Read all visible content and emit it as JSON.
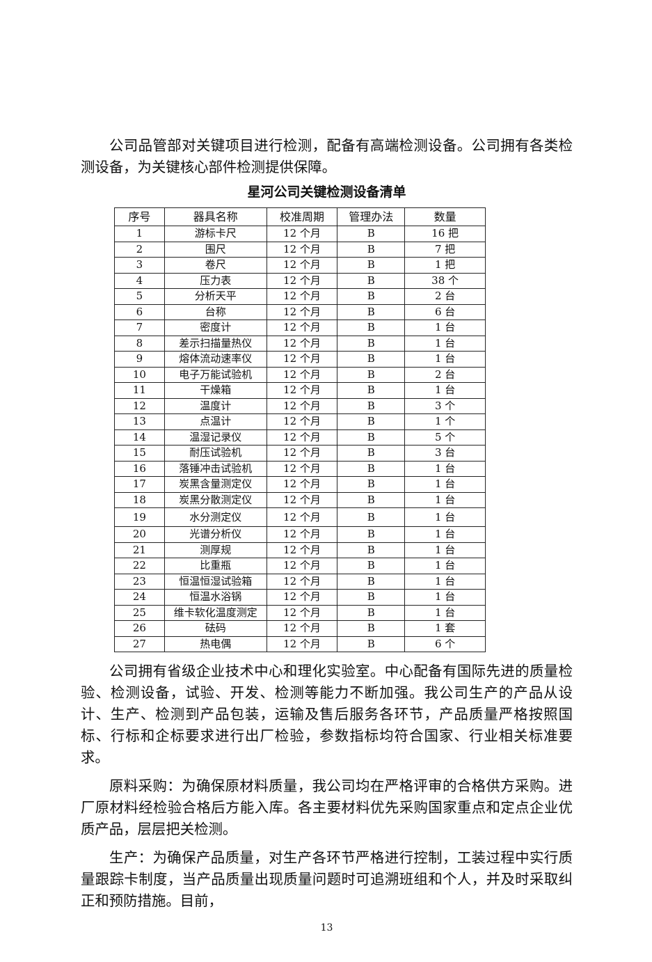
{
  "paragraphs": {
    "intro": "公司品管部对关键项目进行检测，配备有高端检测设备。公司拥有各类检测设备，为关键核心部件检测提供保障。",
    "center": "公司拥有省级企业技术中心和理化实验室。中心配备有国际先进的质量检验、检测设备，试验、开发、检测等能力不断加强。我公司生产的产品从设计、生产、检测到产品包装，运输及售后服务各环节，产品质量严格按照国标、行标和企标要求进行出厂检验，参数指标均符合国家、行业相关标准要求。",
    "procurement": "原料采购：为确保原材料质量，我公司均在严格评审的合格供方采购。进厂原材料经检验合格后方能入库。各主要材料优先采购国家重点和定点企业优质产品，层层把关检测。",
    "production": "生产：为确保产品质量，对生产各环节严格进行控制，工装过程中实行质量跟踪卡制度，当产品质量出现质量问题时可追溯班组和个人，并及时采取纠正和预防措施。目前，"
  },
  "table": {
    "title": "星河公司关键检测设备清单",
    "headers": [
      "序号",
      "器具名称",
      "校准周期",
      "管理办法",
      "数量"
    ],
    "rows": [
      [
        "1",
        "游标卡尺",
        "12 个月",
        "B",
        "16 把"
      ],
      [
        "2",
        "围尺",
        "12 个月",
        "B",
        "7 把"
      ],
      [
        "3",
        "卷尺",
        "12 个月",
        "B",
        "1 把"
      ],
      [
        "4",
        "压力表",
        "12 个月",
        "B",
        "38 个"
      ],
      [
        "5",
        "分析天平",
        "12 个月",
        "B",
        "2 台"
      ],
      [
        "6",
        "台称",
        "12 个月",
        "B",
        "6 台"
      ],
      [
        "7",
        "密度计",
        "12 个月",
        "B",
        "1 台"
      ],
      [
        "8",
        "差示扫描量热仪",
        "12 个月",
        "B",
        "1 台"
      ],
      [
        "9",
        "熔体流动速率仪",
        "12 个月",
        "B",
        "1 台"
      ],
      [
        "10",
        "电子万能试验机",
        "12 个月",
        "B",
        "2 台"
      ],
      [
        "11",
        "干燥箱",
        "12 个月",
        "B",
        "1 台"
      ],
      [
        "12",
        "温度计",
        "12 个月",
        "B",
        "3 个"
      ],
      [
        "13",
        "点温计",
        "12 个月",
        "B",
        "1 个"
      ],
      [
        "14",
        "温湿记录仪",
        "12 个月",
        "B",
        "5 个"
      ],
      [
        "15",
        "耐压试验机",
        "12 个月",
        "B",
        "3 台"
      ],
      [
        "16",
        "落锤冲击试验机",
        "12 个月",
        "B",
        "1 台"
      ],
      [
        "17",
        "炭黑含量测定仪",
        "12 个月",
        "B",
        "1 台"
      ],
      [
        "18",
        "炭黑分散测定仪",
        "12 个月",
        "B",
        "1 台"
      ],
      [
        "19",
        "水分测定仪",
        "12 个月",
        "B",
        "1 台"
      ],
      [
        "20",
        "光谱分析仪",
        "12 个月",
        "B",
        "1 台"
      ],
      [
        "21",
        "测厚规",
        "12 个月",
        "B",
        "1 台"
      ],
      [
        "22",
        "比重瓶",
        "12 个月",
        "B",
        "1 台"
      ],
      [
        "23",
        "恒温恒湿试验箱",
        "12 个月",
        "B",
        "1 台"
      ],
      [
        "24",
        "恒温水浴锅",
        "12 个月",
        "B",
        "1 台"
      ],
      [
        "25",
        "维卡软化温度测定",
        "12 个月",
        "B",
        "1 台"
      ],
      [
        "26",
        "砝码",
        "12 个月",
        "B",
        "1 套"
      ],
      [
        "27",
        "热电偶",
        "12 个月",
        "B",
        "6 个"
      ]
    ]
  },
  "page_number": "13"
}
